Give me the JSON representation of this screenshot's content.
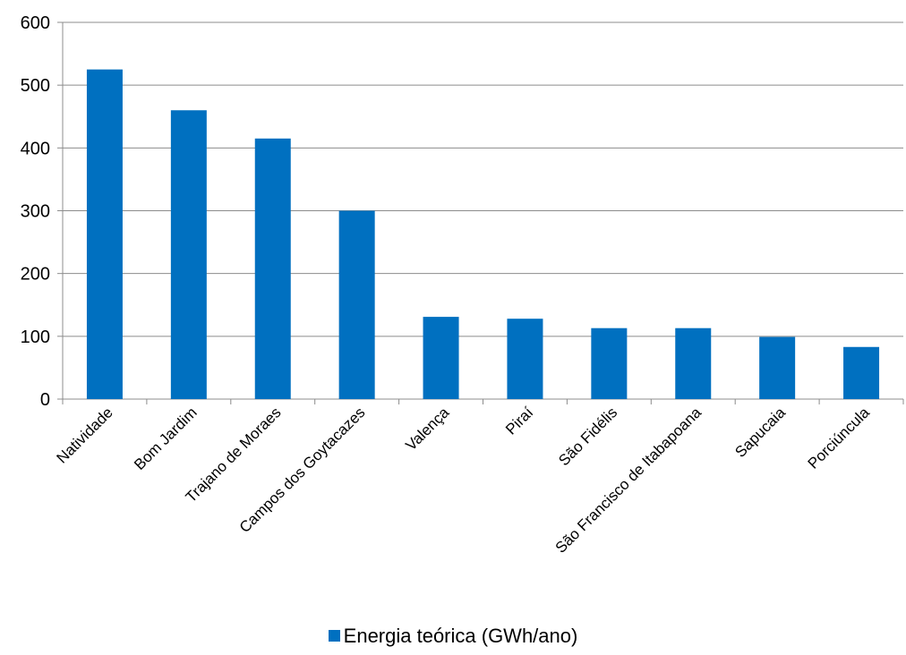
{
  "chart_data": {
    "type": "bar",
    "categories": [
      "Natividade",
      "Bom Jardim",
      "Trajano de Moraes",
      "Campos dos Goytacazes",
      "Valença",
      "Piraí",
      "São Fidélis",
      "São Francisco de Itabapoana",
      "Sapucaia",
      "Porciúncula"
    ],
    "series": [
      {
        "name": "Energia teórica (GWh/ano)",
        "values": [
          525,
          460,
          415,
          300,
          131,
          128,
          113,
          113,
          99,
          83
        ],
        "color": "#0070C0"
      }
    ],
    "ylim": [
      0,
      600
    ],
    "yticks": [
      0,
      100,
      200,
      300,
      400,
      500,
      600
    ],
    "grid": true,
    "legend_position": "bottom",
    "title": "",
    "xlabel": "",
    "ylabel": ""
  }
}
